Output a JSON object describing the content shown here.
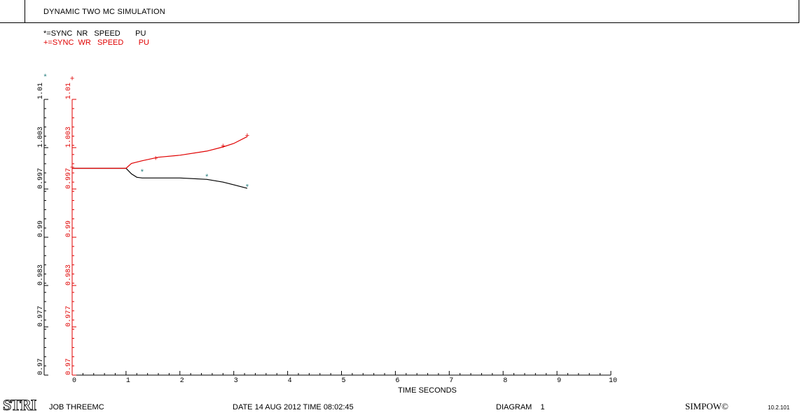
{
  "header": {
    "title": "DYNAMIC TWO MC SIMULATION"
  },
  "legend": {
    "series1_label": "*=SYNC  NR   SPEED       PU",
    "series2_label": "+=SYNC  WR   SPEED       PU"
  },
  "footer": {
    "logo": "STRI",
    "job": "JOB THREEMC",
    "date": "DATE 14 AUG 2012 TIME 08:02:45",
    "diagram": "DIAGRAM    1",
    "product": "SIMPOW©",
    "version": "10.2.101"
  },
  "colors": {
    "series1": "#000000",
    "series1_marker": "#2a8080",
    "series2": "#e00000",
    "axis_black": "#000000",
    "axis_red": "#e00000"
  },
  "chart_data": {
    "type": "line",
    "xlabel": "TIME SECONDS",
    "xlim": [
      0,
      10
    ],
    "x_ticks": [
      "0",
      "1",
      "2",
      "3",
      "4",
      "5",
      "6",
      "7",
      "8",
      "9",
      "10"
    ],
    "ylim": [
      0.97,
      1.01
    ],
    "y_ticks": [
      0.97,
      0.977,
      0.983,
      0.99,
      0.997,
      1.003,
      1.01
    ],
    "y_tick_labels": [
      "0.97",
      "0.977",
      "0.983",
      "0.99",
      "0.997",
      "1.003",
      "1.01"
    ],
    "series": [
      {
        "name": "SYNC  NR   SPEED       PU",
        "symbol": "*",
        "points": [
          [
            0,
            1.0
          ],
          [
            1.0,
            1.0
          ],
          [
            1.1,
            0.9992
          ],
          [
            1.2,
            0.9987
          ],
          [
            1.3,
            0.9986
          ],
          [
            1.5,
            0.9986
          ],
          [
            2.0,
            0.9986
          ],
          [
            2.5,
            0.9984
          ],
          [
            2.8,
            0.998
          ],
          [
            3.0,
            0.9976
          ],
          [
            3.25,
            0.9971
          ]
        ],
        "marker_points": [
          [
            -0.5,
            1.0133
          ],
          [
            1.3,
            0.9995
          ],
          [
            2.5,
            0.9988
          ],
          [
            3.25,
            0.9973
          ]
        ]
      },
      {
        "name": "SYNC  WR   SPEED       PU",
        "symbol": "+",
        "points": [
          [
            0,
            1.0
          ],
          [
            1.0,
            1.0
          ],
          [
            1.1,
            1.0007
          ],
          [
            1.3,
            1.0011
          ],
          [
            1.6,
            1.0016
          ],
          [
            2.0,
            1.0019
          ],
          [
            2.5,
            1.0025
          ],
          [
            2.8,
            1.0031
          ],
          [
            3.0,
            1.0036
          ],
          [
            3.25,
            1.0046
          ]
        ],
        "marker_points": [
          [
            0,
            1.0131
          ],
          [
            0,
            1.0002
          ],
          [
            1.55,
            1.0015
          ],
          [
            2.8,
            1.0033
          ],
          [
            3.25,
            1.0048
          ]
        ]
      }
    ]
  }
}
